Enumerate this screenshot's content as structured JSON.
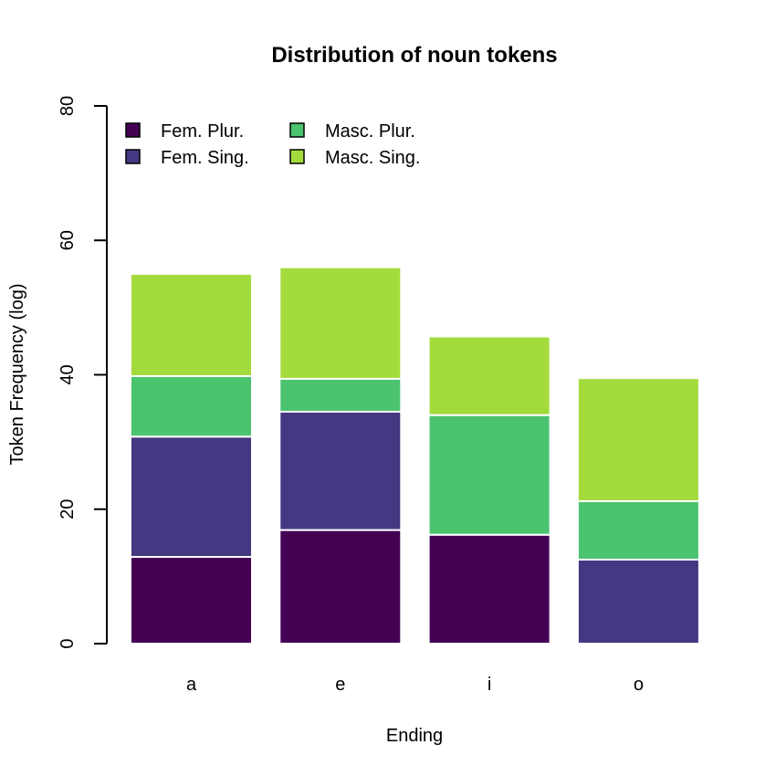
{
  "chart_data": {
    "type": "bar",
    "stacked": true,
    "title": "Distribution of noun tokens",
    "xlabel": "Ending",
    "ylabel": "Token Frequency (log)",
    "categories": [
      "a",
      "e",
      "i",
      "o"
    ],
    "ylim": [
      0,
      80
    ],
    "yticks": [
      0,
      20,
      40,
      60,
      80
    ],
    "grid": false,
    "legend_position": "top-left",
    "series": [
      {
        "name": "Fem. Plur.",
        "color": "#440154",
        "values": [
          12.9,
          16.9,
          16.2,
          0
        ]
      },
      {
        "name": "Fem. Sing.",
        "color": "#453781",
        "values": [
          17.9,
          17.6,
          0,
          12.5
        ]
      },
      {
        "name": "Masc. Plur.",
        "color": "#4bc36f",
        "values": [
          9.0,
          4.9,
          17.8,
          8.7
        ]
      },
      {
        "name": "Masc. Sing.",
        "color": "#a3db3c",
        "values": [
          15.2,
          16.6,
          11.7,
          18.3
        ]
      }
    ]
  }
}
